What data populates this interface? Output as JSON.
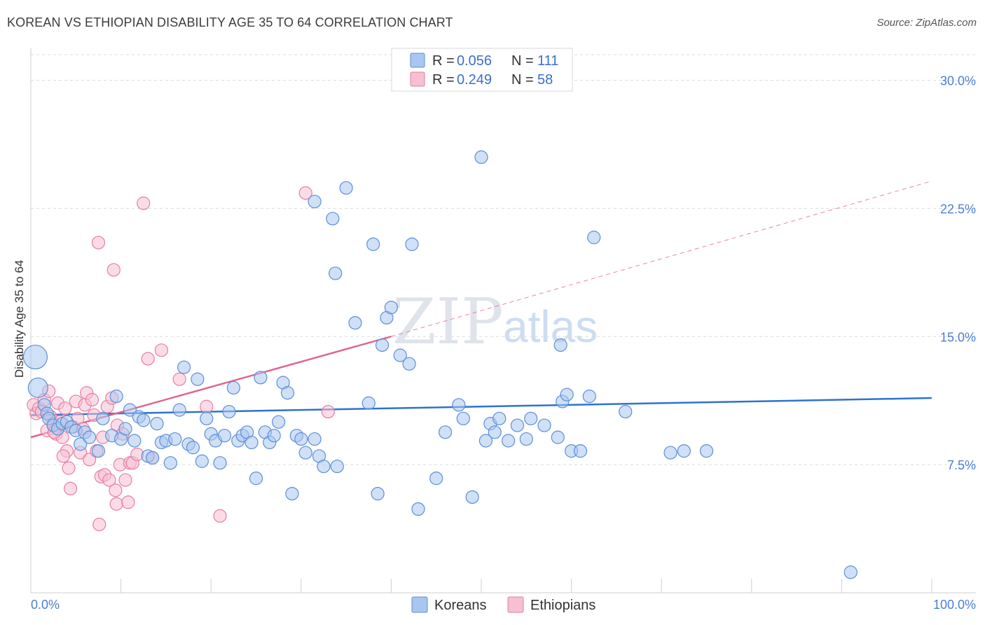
{
  "title": "KOREAN VS ETHIOPIAN DISABILITY AGE 35 TO 64 CORRELATION CHART",
  "source": "Source: ZipAtlas.com",
  "colors": {
    "korean_fill": "#a9c6f0",
    "korean_stroke": "#5b8fd6",
    "korean_line": "#2f72d0",
    "ethiopian_fill": "#f7bfd2",
    "ethiopian_stroke": "#e67ea2",
    "ethiopian_line": "#e0668f",
    "axis_text": "#4a7fd4"
  },
  "legend": {
    "rows": [
      {
        "r_label": "R = ",
        "r_value": "0.056",
        "n_label": "N = ",
        "n_value": "111"
      },
      {
        "r_label": "R = ",
        "r_value": "0.249",
        "n_label": "N = ",
        "n_value": "58"
      }
    ]
  },
  "watermark": {
    "zip": "ZIP",
    "atlas": "atlas"
  },
  "chart_data": {
    "type": "scatter",
    "title": "KOREAN VS ETHIOPIAN DISABILITY AGE 35 TO 64 CORRELATION CHART",
    "xlabel": "",
    "ylabel": "Disability Age 35 to 64",
    "xlim": [
      0,
      100
    ],
    "ylim": [
      0,
      31.5
    ],
    "x_tick_labels": [
      "0.0%",
      "100.0%"
    ],
    "y_ticks": [
      7.5,
      15.0,
      22.5,
      30.0
    ],
    "y_tick_labels": [
      "7.5%",
      "15.0%",
      "22.5%",
      "30.0%"
    ],
    "grid": true,
    "legend_position": "top-center",
    "series": [
      {
        "name": "Koreans",
        "r": 0.056,
        "n": 111,
        "trend": {
          "x0": 0,
          "y0": 10.4,
          "x1": 100,
          "y1": 11.4,
          "dashed_from": null
        },
        "points": [
          [
            0.5,
            13.8
          ],
          [
            0.8,
            12.0
          ],
          [
            1.5,
            11.0
          ],
          [
            1.8,
            10.5
          ],
          [
            2.0,
            10.2
          ],
          [
            2.5,
            9.8
          ],
          [
            3.0,
            9.6
          ],
          [
            3.5,
            9.9
          ],
          [
            4.0,
            10.0
          ],
          [
            4.5,
            9.7
          ],
          [
            5.0,
            9.5
          ],
          [
            5.5,
            8.7
          ],
          [
            6.0,
            9.4
          ],
          [
            6.5,
            9.1
          ],
          [
            7.5,
            8.3
          ],
          [
            8.0,
            10.2
          ],
          [
            9.0,
            9.2
          ],
          [
            9.5,
            11.5
          ],
          [
            10.0,
            9.0
          ],
          [
            10.5,
            9.6
          ],
          [
            11.0,
            10.7
          ],
          [
            11.5,
            8.9
          ],
          [
            12.0,
            10.3
          ],
          [
            12.5,
            10.1
          ],
          [
            13.0,
            8.0
          ],
          [
            13.5,
            7.9
          ],
          [
            14.0,
            9.9
          ],
          [
            14.5,
            8.8
          ],
          [
            15.0,
            8.9
          ],
          [
            15.5,
            7.6
          ],
          [
            16.0,
            9.0
          ],
          [
            16.5,
            10.7
          ],
          [
            17.0,
            13.2
          ],
          [
            17.5,
            8.7
          ],
          [
            18.0,
            8.5
          ],
          [
            18.5,
            12.5
          ],
          [
            19.0,
            7.7
          ],
          [
            19.5,
            10.2
          ],
          [
            20.0,
            9.3
          ],
          [
            20.5,
            8.9
          ],
          [
            21.0,
            7.6
          ],
          [
            21.5,
            9.2
          ],
          [
            22.0,
            10.6
          ],
          [
            22.5,
            12.0
          ],
          [
            23.0,
            8.9
          ],
          [
            23.5,
            9.2
          ],
          [
            24.0,
            9.4
          ],
          [
            24.5,
            8.8
          ],
          [
            25.0,
            6.7
          ],
          [
            25.5,
            12.6
          ],
          [
            26.0,
            9.4
          ],
          [
            26.5,
            8.8
          ],
          [
            27.0,
            9.2
          ],
          [
            27.5,
            10.0
          ],
          [
            28.0,
            12.3
          ],
          [
            28.5,
            11.7
          ],
          [
            29.0,
            5.8
          ],
          [
            29.5,
            9.2
          ],
          [
            30.0,
            9.0
          ],
          [
            30.5,
            8.2
          ],
          [
            31.5,
            9.0
          ],
          [
            32.0,
            8.0
          ],
          [
            32.5,
            7.4
          ],
          [
            34.0,
            7.4
          ],
          [
            31.5,
            22.9
          ],
          [
            33.5,
            21.9
          ],
          [
            35.0,
            23.7
          ],
          [
            33.8,
            18.7
          ],
          [
            36.0,
            15.8
          ],
          [
            37.5,
            11.1
          ],
          [
            38.0,
            20.4
          ],
          [
            38.5,
            5.8
          ],
          [
            39.0,
            14.5
          ],
          [
            39.5,
            16.1
          ],
          [
            40.0,
            16.7
          ],
          [
            41.0,
            13.9
          ],
          [
            42.0,
            13.4
          ],
          [
            42.3,
            20.4
          ],
          [
            43.0,
            4.9
          ],
          [
            45.0,
            6.7
          ],
          [
            46.0,
            9.4
          ],
          [
            47.5,
            11.0
          ],
          [
            48.0,
            10.2
          ],
          [
            49.0,
            5.6
          ],
          [
            50.0,
            25.5
          ],
          [
            50.5,
            8.9
          ],
          [
            51.0,
            9.9
          ],
          [
            51.5,
            9.4
          ],
          [
            52.0,
            10.2
          ],
          [
            53.0,
            8.9
          ],
          [
            54.0,
            9.8
          ],
          [
            55.0,
            9.0
          ],
          [
            55.5,
            10.2
          ],
          [
            57.0,
            9.8
          ],
          [
            58.5,
            9.1
          ],
          [
            60.0,
            8.3
          ],
          [
            58.8,
            14.5
          ],
          [
            59.0,
            11.2
          ],
          [
            59.5,
            11.6
          ],
          [
            61.0,
            8.3
          ],
          [
            62.0,
            11.5
          ],
          [
            62.5,
            20.8
          ],
          [
            66.0,
            10.6
          ],
          [
            71.0,
            8.2
          ],
          [
            72.5,
            8.3
          ],
          [
            75.0,
            8.3
          ],
          [
            91.0,
            1.2
          ]
        ]
      },
      {
        "name": "Ethiopians",
        "r": 0.249,
        "n": 58,
        "trend": {
          "x0": 0,
          "y0": 9.1,
          "x1": 40,
          "y1": 15.0,
          "dashed_to_x": 100,
          "dashed_to_y": 24.1
        },
        "points": [
          [
            0.3,
            11.0
          ],
          [
            0.6,
            10.5
          ],
          [
            0.9,
            10.8
          ],
          [
            1.2,
            10.6
          ],
          [
            1.5,
            11.3
          ],
          [
            1.8,
            9.5
          ],
          [
            2.0,
            11.8
          ],
          [
            2.2,
            10.3
          ],
          [
            2.5,
            9.9
          ],
          [
            2.8,
            9.3
          ],
          [
            3.0,
            11.1
          ],
          [
            3.2,
            10.0
          ],
          [
            3.5,
            9.1
          ],
          [
            3.8,
            10.8
          ],
          [
            4.0,
            8.3
          ],
          [
            4.2,
            7.3
          ],
          [
            4.4,
            6.1
          ],
          [
            4.7,
            9.7
          ],
          [
            5.0,
            11.2
          ],
          [
            5.2,
            10.2
          ],
          [
            5.5,
            8.2
          ],
          [
            5.8,
            9.6
          ],
          [
            6.0,
            11.0
          ],
          [
            6.2,
            11.7
          ],
          [
            6.5,
            7.8
          ],
          [
            6.8,
            11.3
          ],
          [
            7.0,
            10.4
          ],
          [
            7.3,
            8.3
          ],
          [
            7.5,
            20.5
          ],
          [
            7.6,
            4.0
          ],
          [
            7.8,
            6.8
          ],
          [
            8.0,
            9.1
          ],
          [
            8.2,
            6.9
          ],
          [
            8.5,
            10.9
          ],
          [
            8.7,
            6.6
          ],
          [
            9.0,
            11.4
          ],
          [
            9.2,
            18.9
          ],
          [
            9.4,
            6.0
          ],
          [
            9.5,
            5.2
          ],
          [
            9.6,
            9.8
          ],
          [
            9.9,
            7.5
          ],
          [
            10.2,
            9.3
          ],
          [
            10.5,
            6.6
          ],
          [
            10.8,
            5.3
          ],
          [
            11.0,
            7.6
          ],
          [
            11.3,
            7.6
          ],
          [
            11.8,
            8.1
          ],
          [
            12.5,
            22.8
          ],
          [
            13.0,
            13.7
          ],
          [
            13.5,
            7.9
          ],
          [
            14.5,
            14.2
          ],
          [
            16.5,
            12.5
          ],
          [
            19.5,
            10.9
          ],
          [
            21.0,
            4.5
          ],
          [
            30.5,
            23.4
          ],
          [
            33.0,
            10.6
          ],
          [
            2.6,
            9.4
          ],
          [
            3.6,
            8.0
          ]
        ]
      }
    ]
  },
  "bottom_legend": [
    "Koreans",
    "Ethiopians"
  ]
}
